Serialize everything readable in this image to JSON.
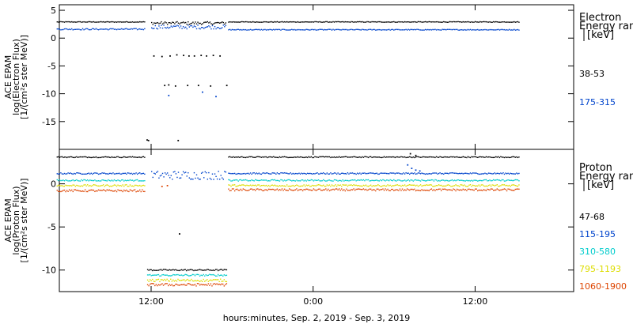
{
  "chart_data": [
    {
      "type": "scatter",
      "panel": "electron",
      "ylabel": [
        "ACE EPAM",
        "log(Electron Flux)",
        "[1/(cm²s ster MeV)]"
      ],
      "ylim": [
        -20,
        6
      ],
      "yticks": [
        5,
        0,
        -5,
        -10,
        -15
      ],
      "ytick_labels": [
        "5",
        "0",
        "-5",
        "-10",
        "-15"
      ],
      "legend_title": [
        "Electron",
        "Energy ranges",
        "[keV]"
      ],
      "series": [
        {
          "name": "38-53",
          "color": "#000000",
          "segments": [
            {
              "start": 5.0,
              "end": 11.5,
              "level": 2.9,
              "jitter": 0.06
            },
            {
              "start": 12.0,
              "end": 17.5,
              "level": 2.7,
              "jitter": 0.25
            },
            {
              "start": 17.7,
              "end": 39.3,
              "level": 2.9,
              "jitter": 0.06
            }
          ],
          "points": [
            [
              12.2,
              -3.2
            ],
            [
              12.8,
              -3.3
            ],
            [
              13.4,
              -3.2
            ],
            [
              13.9,
              -3.0
            ],
            [
              14.4,
              -3.1
            ],
            [
              14.8,
              -3.2
            ],
            [
              15.2,
              -3.2
            ],
            [
              15.7,
              -3.1
            ],
            [
              16.1,
              -3.2
            ],
            [
              16.6,
              -3.1
            ],
            [
              17.1,
              -3.2
            ],
            [
              13.0,
              -8.5
            ],
            [
              13.3,
              -8.4
            ],
            [
              13.8,
              -8.6
            ],
            [
              14.7,
              -8.5
            ],
            [
              15.5,
              -8.5
            ],
            [
              16.4,
              -8.6
            ],
            [
              17.6,
              -8.5
            ],
            [
              11.7,
              -18.3
            ],
            [
              11.8,
              -18.4
            ],
            [
              14.0,
              -18.4
            ]
          ]
        },
        {
          "name": "175-315",
          "color": "#0044cc",
          "segments": [
            {
              "start": 5.0,
              "end": 11.5,
              "level": 1.6,
              "jitter": 0.12
            },
            {
              "start": 12.0,
              "end": 17.5,
              "level": 2.0,
              "jitter": 0.35
            },
            {
              "start": 17.7,
              "end": 39.3,
              "level": 1.5,
              "jitter": 0.07
            }
          ],
          "points": [
            [
              13.3,
              -10.3
            ],
            [
              15.8,
              -9.7
            ],
            [
              16.8,
              -10.5
            ]
          ]
        }
      ]
    },
    {
      "type": "scatter",
      "panel": "proton",
      "ylabel": [
        "ACE EPAM",
        "log(Proton Flux)",
        "[1/(cm²s ster MeV)]"
      ],
      "ylim": [
        -12.5,
        4
      ],
      "yticks": [
        0,
        -5,
        -10
      ],
      "ytick_labels": [
        "0",
        "-5",
        "-10"
      ],
      "legend_title": [
        "Proton",
        "Energy ranges",
        "[keV]"
      ],
      "series": [
        {
          "name": "47-68",
          "color": "#000000",
          "segments": [
            {
              "start": 5.0,
              "end": 11.5,
              "level": 3.1,
              "jitter": 0.06
            },
            {
              "start": 17.7,
              "end": 39.3,
              "level": 3.1,
              "jitter": 0.06
            },
            {
              "start": 11.7,
              "end": 17.6,
              "level": -10.0,
              "jitter": 0.08
            }
          ],
          "points": [
            [
              14.1,
              -5.8
            ],
            [
              31.2,
              3.5
            ],
            [
              31.6,
              3.3
            ]
          ]
        },
        {
          "name": "115-195",
          "color": "#0044cc",
          "segments": [
            {
              "start": 5.0,
              "end": 11.5,
              "level": 1.2,
              "jitter": 0.08
            },
            {
              "start": 12.0,
              "end": 17.5,
              "level": 1.0,
              "jitter": 0.5
            },
            {
              "start": 17.7,
              "end": 39.3,
              "level": 1.2,
              "jitter": 0.08
            }
          ],
          "points": [
            [
              31.0,
              2.2
            ],
            [
              31.3,
              1.8
            ],
            [
              31.6,
              1.6
            ],
            [
              31.9,
              1.5
            ]
          ]
        },
        {
          "name": "310-580",
          "color": "#00cccc",
          "segments": [
            {
              "start": 5.0,
              "end": 11.5,
              "level": 0.4,
              "jitter": 0.08
            },
            {
              "start": 17.7,
              "end": 39.3,
              "level": 0.4,
              "jitter": 0.08
            },
            {
              "start": 11.7,
              "end": 17.6,
              "level": -10.6,
              "jitter": 0.1
            }
          ]
        },
        {
          "name": "795-1193",
          "color": "#dddd00",
          "segments": [
            {
              "start": 5.0,
              "end": 11.5,
              "level": -0.2,
              "jitter": 0.1
            },
            {
              "start": 17.7,
              "end": 39.3,
              "level": -0.2,
              "jitter": 0.1
            },
            {
              "start": 11.7,
              "end": 17.6,
              "level": -11.2,
              "jitter": 0.15
            }
          ]
        },
        {
          "name": "1060-1900",
          "color": "#dd4400",
          "segments": [
            {
              "start": 5.0,
              "end": 11.5,
              "level": -0.8,
              "jitter": 0.12
            },
            {
              "start": 17.7,
              "end": 39.3,
              "level": -0.7,
              "jitter": 0.12
            },
            {
              "start": 11.7,
              "end": 17.6,
              "level": -11.7,
              "jitter": 0.15
            }
          ],
          "points": [
            [
              12.8,
              -0.3
            ],
            [
              13.2,
              -0.2
            ]
          ]
        }
      ]
    }
  ],
  "x_axis": {
    "xlim": [
      5.2,
      43.3
    ],
    "ticks": [
      12,
      24,
      36
    ],
    "tick_labels": [
      "12:00",
      "0:00",
      "12:00"
    ],
    "xlabel": "hours:minutes, Sep.  2, 2019 - Sep.  3, 2019"
  }
}
